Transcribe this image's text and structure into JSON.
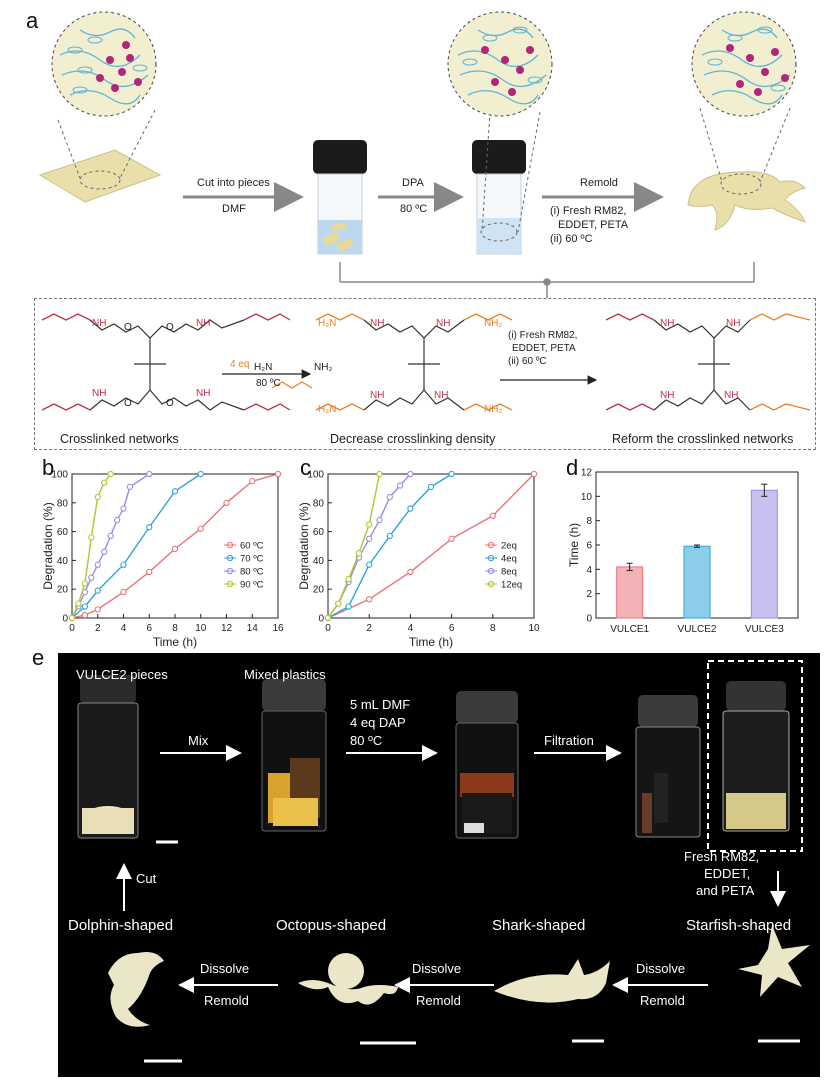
{
  "panel_letters": {
    "a": "a",
    "b": "b",
    "c": "c",
    "d": "d",
    "e": "e"
  },
  "panel_a": {
    "step1_top": "Cut into pieces",
    "step1_bottom": "DMF",
    "step2_top": "DPA",
    "step2_bottom": "80 ºC",
    "step3_top": "Remold",
    "step3_line1": "(i) Fresh RM82,",
    "step3_line2": "EDDET,  PETA",
    "step3_line3": "(ii) 60 ºC",
    "arrow1_reagent": "4 eq",
    "arrow1_temp": "80 ºC",
    "arrow2_line1": "(i) Fresh RM82,",
    "arrow2_line2": "EDDET,  PETA",
    "arrow2_line3": "(ii) 60 ºC",
    "caption1": "Crosslinked networks",
    "caption2": "Decrease crosslinking density",
    "caption3": "Reform the crosslinked networks",
    "nh": "NH",
    "nh2": "NH₂",
    "h2n": "H₂N",
    "o": "O"
  },
  "chart_data": [
    {
      "type": "line",
      "panel": "b",
      "xlabel": "Time (h)",
      "ylabel": "Degradation (%)",
      "xlim": [
        0,
        16
      ],
      "ylim": [
        0,
        100
      ],
      "xticks": [
        "0",
        "2",
        "4",
        "6",
        "8",
        "10",
        "12",
        "14",
        "16"
      ],
      "yticks": [
        "0",
        "20",
        "40",
        "60",
        "80",
        "100"
      ],
      "legend_position": "right",
      "series": [
        {
          "name": "60 ºC",
          "color": "#e8737a",
          "x": [
            0,
            1,
            2,
            4,
            6,
            8,
            10,
            12,
            14,
            16
          ],
          "y": [
            0,
            2,
            6,
            18,
            32,
            48,
            62,
            80,
            95,
            100
          ]
        },
        {
          "name": "70 ºC",
          "color": "#2ea5d8",
          "x": [
            0,
            1,
            2,
            4,
            6,
            8,
            10
          ],
          "y": [
            0,
            8,
            19,
            37,
            63,
            88,
            100
          ]
        },
        {
          "name": "80 ºC",
          "color": "#9a8ce6",
          "x": [
            0,
            0.5,
            1,
            1.5,
            2,
            2.5,
            3,
            3.5,
            4,
            4.5,
            6
          ],
          "y": [
            0,
            8,
            18,
            28,
            37,
            46,
            57,
            68,
            76,
            91,
            100
          ]
        },
        {
          "name": "90 ºC",
          "color": "#b8c430",
          "x": [
            0,
            0.5,
            1,
            1.5,
            2,
            2.5,
            3
          ],
          "y": [
            0,
            10,
            24,
            56,
            84,
            94,
            100
          ]
        }
      ]
    },
    {
      "type": "line",
      "panel": "c",
      "xlabel": "Time (h)",
      "ylabel": "Degradation (%)",
      "xlim": [
        0,
        10
      ],
      "ylim": [
        0,
        100
      ],
      "xticks": [
        "0",
        "2",
        "4",
        "6",
        "8",
        "10"
      ],
      "yticks": [
        "0",
        "20",
        "40",
        "60",
        "80",
        "100"
      ],
      "legend_position": "right",
      "series": [
        {
          "name": "2eq",
          "color": "#e8737a",
          "x": [
            0,
            2,
            4,
            6,
            8,
            10
          ],
          "y": [
            0,
            13,
            32,
            55,
            71,
            100
          ]
        },
        {
          "name": "4eq",
          "color": "#2ea5d8",
          "x": [
            0,
            1,
            2,
            3,
            4,
            5,
            6
          ],
          "y": [
            0,
            8,
            37,
            57,
            76,
            91,
            100
          ]
        },
        {
          "name": "8eq",
          "color": "#9a8ce6",
          "x": [
            0,
            0.5,
            1,
            1.5,
            2,
            2.5,
            3,
            3.5,
            4
          ],
          "y": [
            0,
            10,
            25,
            42,
            55,
            68,
            84,
            92,
            100
          ]
        },
        {
          "name": "12eq",
          "color": "#b8c430",
          "x": [
            0,
            0.5,
            1,
            1.5,
            2,
            2.5
          ],
          "y": [
            0,
            10,
            27,
            45,
            65,
            100
          ]
        }
      ]
    },
    {
      "type": "bar",
      "panel": "d",
      "categories": [
        "VULCE1",
        "VULCE2",
        "VULCE3"
      ],
      "values": [
        4.2,
        5.9,
        10.5
      ],
      "errors": [
        0.3,
        0.1,
        0.5
      ],
      "colors": [
        "#e8737a",
        "#2ea5d8",
        "#9a8ce6"
      ],
      "ylabel": "Time (h)",
      "ylim": [
        0,
        12
      ],
      "yticks": [
        "0",
        "2",
        "4",
        "6",
        "8",
        "10",
        "12"
      ]
    }
  ],
  "panel_e": {
    "vulce2_pieces": "VULCE2 pieces",
    "mixed_plastics": "Mixed plastics",
    "mix": "Mix",
    "cond_line1": "5 mL DMF",
    "cond_line2": "4 eq DAP",
    "cond_line3": "80 ºC",
    "filtration": "Filtration",
    "fresh_line1": "Fresh RM82,",
    "fresh_line2": "EDDET,",
    "fresh_line3": "and PETA",
    "starfish": "Starfish-shaped",
    "shark": "Shark-shaped",
    "octopus": "Octopus-shaped",
    "dolphin": "Dolphin-shaped",
    "cut": "Cut",
    "dissolve": "Dissolve",
    "remold": "Remold"
  }
}
